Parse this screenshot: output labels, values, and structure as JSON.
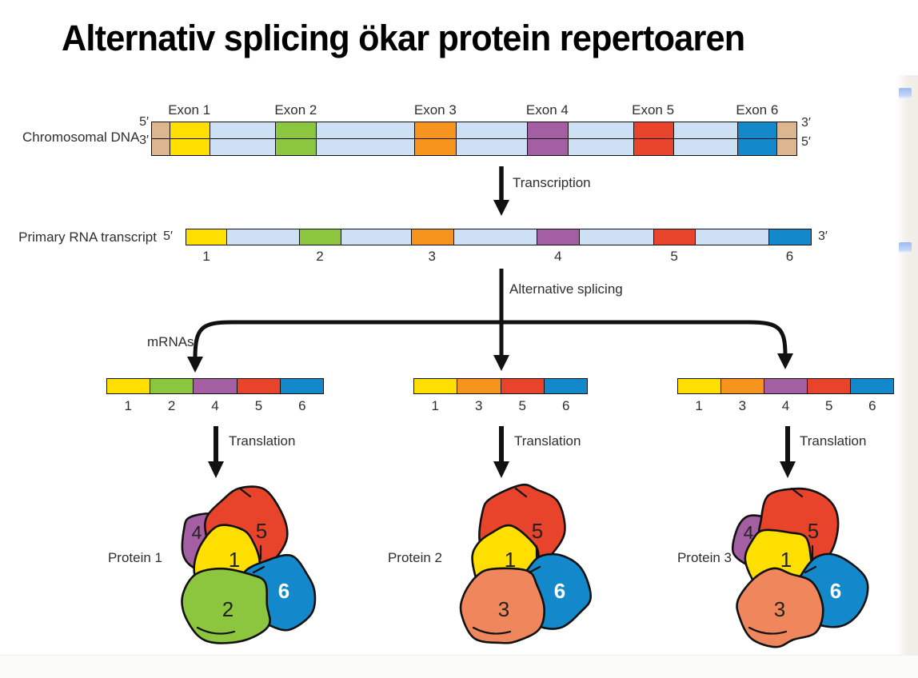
{
  "title": "Alternativ splicing ökar protein repertoaren",
  "dna": {
    "label": "Chromosomal DNA",
    "left_top_prime": "5′",
    "left_bottom_prime": "3′",
    "right_top_prime": "3′",
    "right_bottom_prime": "5′",
    "exon_labels": [
      "Exon 1",
      "Exon 2",
      "Exon 3",
      "Exon 4",
      "Exon 5",
      "Exon 6"
    ]
  },
  "transcription": {
    "label": "Transcription"
  },
  "rna": {
    "label": "Primary RNA transcript",
    "five_prime": "5′",
    "three_prime": "3′",
    "exon_numbers": [
      "1",
      "2",
      "3",
      "4",
      "5",
      "6"
    ]
  },
  "splicing": {
    "label": "Alternative splicing",
    "mrnas_label": "mRNAs"
  },
  "translation_label": "Translation",
  "mrnas": [
    {
      "exons": [
        "1",
        "2",
        "4",
        "5",
        "6"
      ]
    },
    {
      "exons": [
        "1",
        "3",
        "5",
        "6"
      ]
    },
    {
      "exons": [
        "1",
        "3",
        "4",
        "5",
        "6"
      ]
    }
  ],
  "proteins": [
    {
      "label": "Protein 1",
      "domains": [
        "4",
        "5",
        "1",
        "6",
        "2"
      ]
    },
    {
      "label": "Protein 2",
      "domains": [
        "5",
        "1",
        "6",
        "3"
      ]
    },
    {
      "label": "Protein 3",
      "domains": [
        "4",
        "5",
        "1",
        "6",
        "3"
      ]
    }
  ],
  "colors": {
    "exons": {
      "1": "#FFDF00",
      "2": "#8CC63F",
      "3": "#F7941E",
      "4": "#A45FA2",
      "5": "#E8442B",
      "6": "#1389CB"
    },
    "domains": {
      "1": "#FFDF00",
      "2": "#8CC63F",
      "3": "#F0875C",
      "4": "#A45FA2",
      "5": "#E8442B",
      "6": "#1389CB"
    },
    "intron": "#CEE0F4",
    "dna_cap": "#DDB58E",
    "outline": "#111111",
    "domain6_text": "#FFFFFF",
    "marker_blue": "#9BBAF0"
  }
}
